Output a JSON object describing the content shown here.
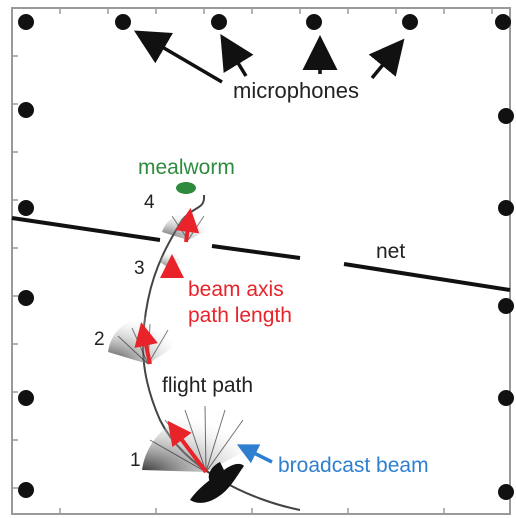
{
  "labels": {
    "microphones": "microphones",
    "mealworm": "mealworm",
    "net": "net",
    "beam_axis_line1": "beam axis",
    "beam_axis_line2": "path length",
    "flight_path": "flight path",
    "broadcast_beam": "broadcast beam",
    "pos1": "1",
    "pos2": "2",
    "pos3": "3",
    "pos4": "4"
  },
  "colors": {
    "mealworm": "#2e8b3e",
    "beam_axis": "#e8232a",
    "broadcast_beam": "#2f7fd0",
    "text": "#222222",
    "frame": "#9a9a9a"
  },
  "icons": [
    "microphone-dot",
    "bat-silhouette",
    "mealworm-shape",
    "beam-fan",
    "arrow"
  ]
}
